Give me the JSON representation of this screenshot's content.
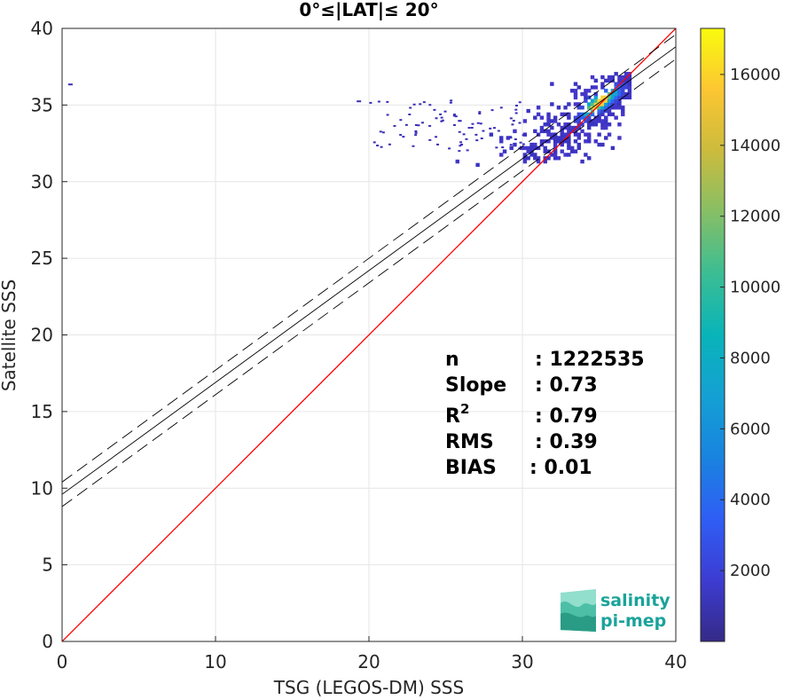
{
  "chart_data": {
    "type": "heatmap",
    "title": "0°≤|LAT|≤ 20°",
    "xlabel": "TSG (LEGOS-DM) SSS",
    "ylabel": "Satellite SSS",
    "xlim": [
      0,
      40
    ],
    "ylim": [
      0,
      40
    ],
    "xticks": [
      "0",
      "10",
      "20",
      "30",
      "40"
    ],
    "yticks": [
      "0",
      "5",
      "10",
      "15",
      "20",
      "25",
      "30",
      "35",
      "40"
    ],
    "grid": true,
    "colorbar": {
      "ticks": [
        "2000",
        "4000",
        "6000",
        "8000",
        "10000",
        "12000",
        "14000",
        "16000"
      ],
      "tick_values": [
        2000,
        4000,
        6000,
        8000,
        10000,
        12000,
        14000,
        16000
      ],
      "range": [
        0,
        17300
      ],
      "colormap": "parula"
    },
    "density_cluster": {
      "x_range": [
        23,
        37
      ],
      "y_range": [
        31,
        37
      ],
      "peak": [
        35,
        35
      ],
      "outliers": [
        [
          0.4,
          36.4
        ],
        [
          19.2,
          35.3
        ]
      ]
    },
    "lines": [
      {
        "kind": "identity",
        "color": "#ff0000",
        "slope": 1.0,
        "intercept": 0.0
      },
      {
        "kind": "fit",
        "color": "#000000",
        "style": "solid",
        "slope": 0.73,
        "intercept": 9.6
      },
      {
        "kind": "fit-upper",
        "color": "#000000",
        "style": "dashed",
        "slope": 0.73,
        "intercept": 10.4
      },
      {
        "kind": "fit-lower",
        "color": "#000000",
        "style": "dashed",
        "slope": 0.73,
        "intercept": 8.8
      }
    ],
    "stats": [
      {
        "label": "n",
        "value": ": 1222535"
      },
      {
        "label": "Slope",
        "value": ": 0.73"
      },
      {
        "label": "R",
        "sup": "2",
        "value": ": 0.79"
      },
      {
        "label": "RMS",
        "value": ": 0.39"
      },
      {
        "label": "BIAS",
        "value": ": 0.01"
      }
    ]
  },
  "logo": {
    "line1": "salinity",
    "line2": "pi-mep",
    "color": "#1aa39a"
  }
}
